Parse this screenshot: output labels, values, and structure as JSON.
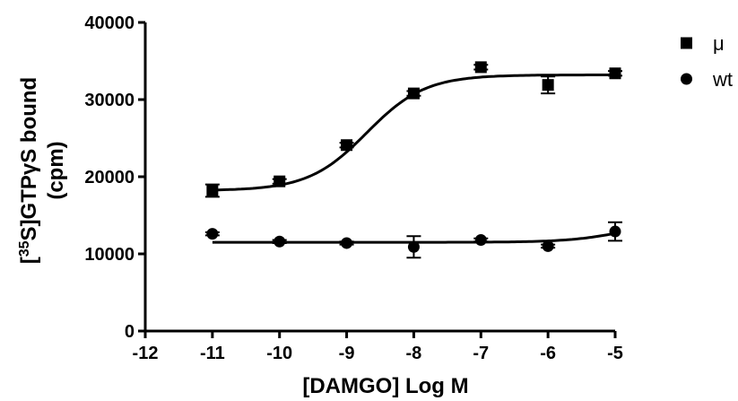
{
  "chart_data": {
    "type": "scatter",
    "xlabel": "[DAMGO] Log M",
    "ylabel": {
      "line1_prefix": "[",
      "line1_sup": "35",
      "line1_suffix": "S]GTPγS bound",
      "line2": "(cpm)"
    },
    "xlim": [
      -12,
      -5
    ],
    "ylim": [
      0,
      40000
    ],
    "x_ticks": [
      -12,
      -11,
      -10,
      -9,
      -8,
      -7,
      -6,
      -5
    ],
    "y_ticks": [
      0,
      10000,
      20000,
      30000,
      40000
    ],
    "x_tick_labels": [
      "-12",
      "-11",
      "-10",
      "-9",
      "-8",
      "-7",
      "-6",
      "-5"
    ],
    "y_tick_labels": [
      "0",
      "10000",
      "20000",
      "30000",
      "40000"
    ],
    "grid": false,
    "legend_position": "top-right",
    "series": [
      {
        "name": "μ",
        "marker": "square",
        "x": [
          -11,
          -10,
          -9,
          -8,
          -7,
          -6,
          -5
        ],
        "y": [
          18200,
          19400,
          24100,
          30800,
          34200,
          31900,
          33400
        ],
        "err": [
          800,
          300,
          300,
          300,
          300,
          1100,
          300
        ],
        "fit": {
          "model": "sigmoid",
          "bottom": 18200,
          "top": 33200,
          "log_ec50": -8.7,
          "hill": 1.0
        }
      },
      {
        "name": "wt",
        "marker": "circle",
        "x": [
          -11,
          -10,
          -9,
          -8,
          -7,
          -6,
          -5
        ],
        "y": [
          12600,
          11600,
          11400,
          10900,
          11800,
          11000,
          12900
        ],
        "err": [
          200,
          200,
          200,
          1400,
          200,
          200,
          1200
        ],
        "fit": {
          "model": "sigmoid",
          "bottom": 11500,
          "top": 14500,
          "log_ec50": -4.8,
          "hill": 1.0
        }
      }
    ],
    "colors": {
      "marks": "#000000"
    }
  }
}
